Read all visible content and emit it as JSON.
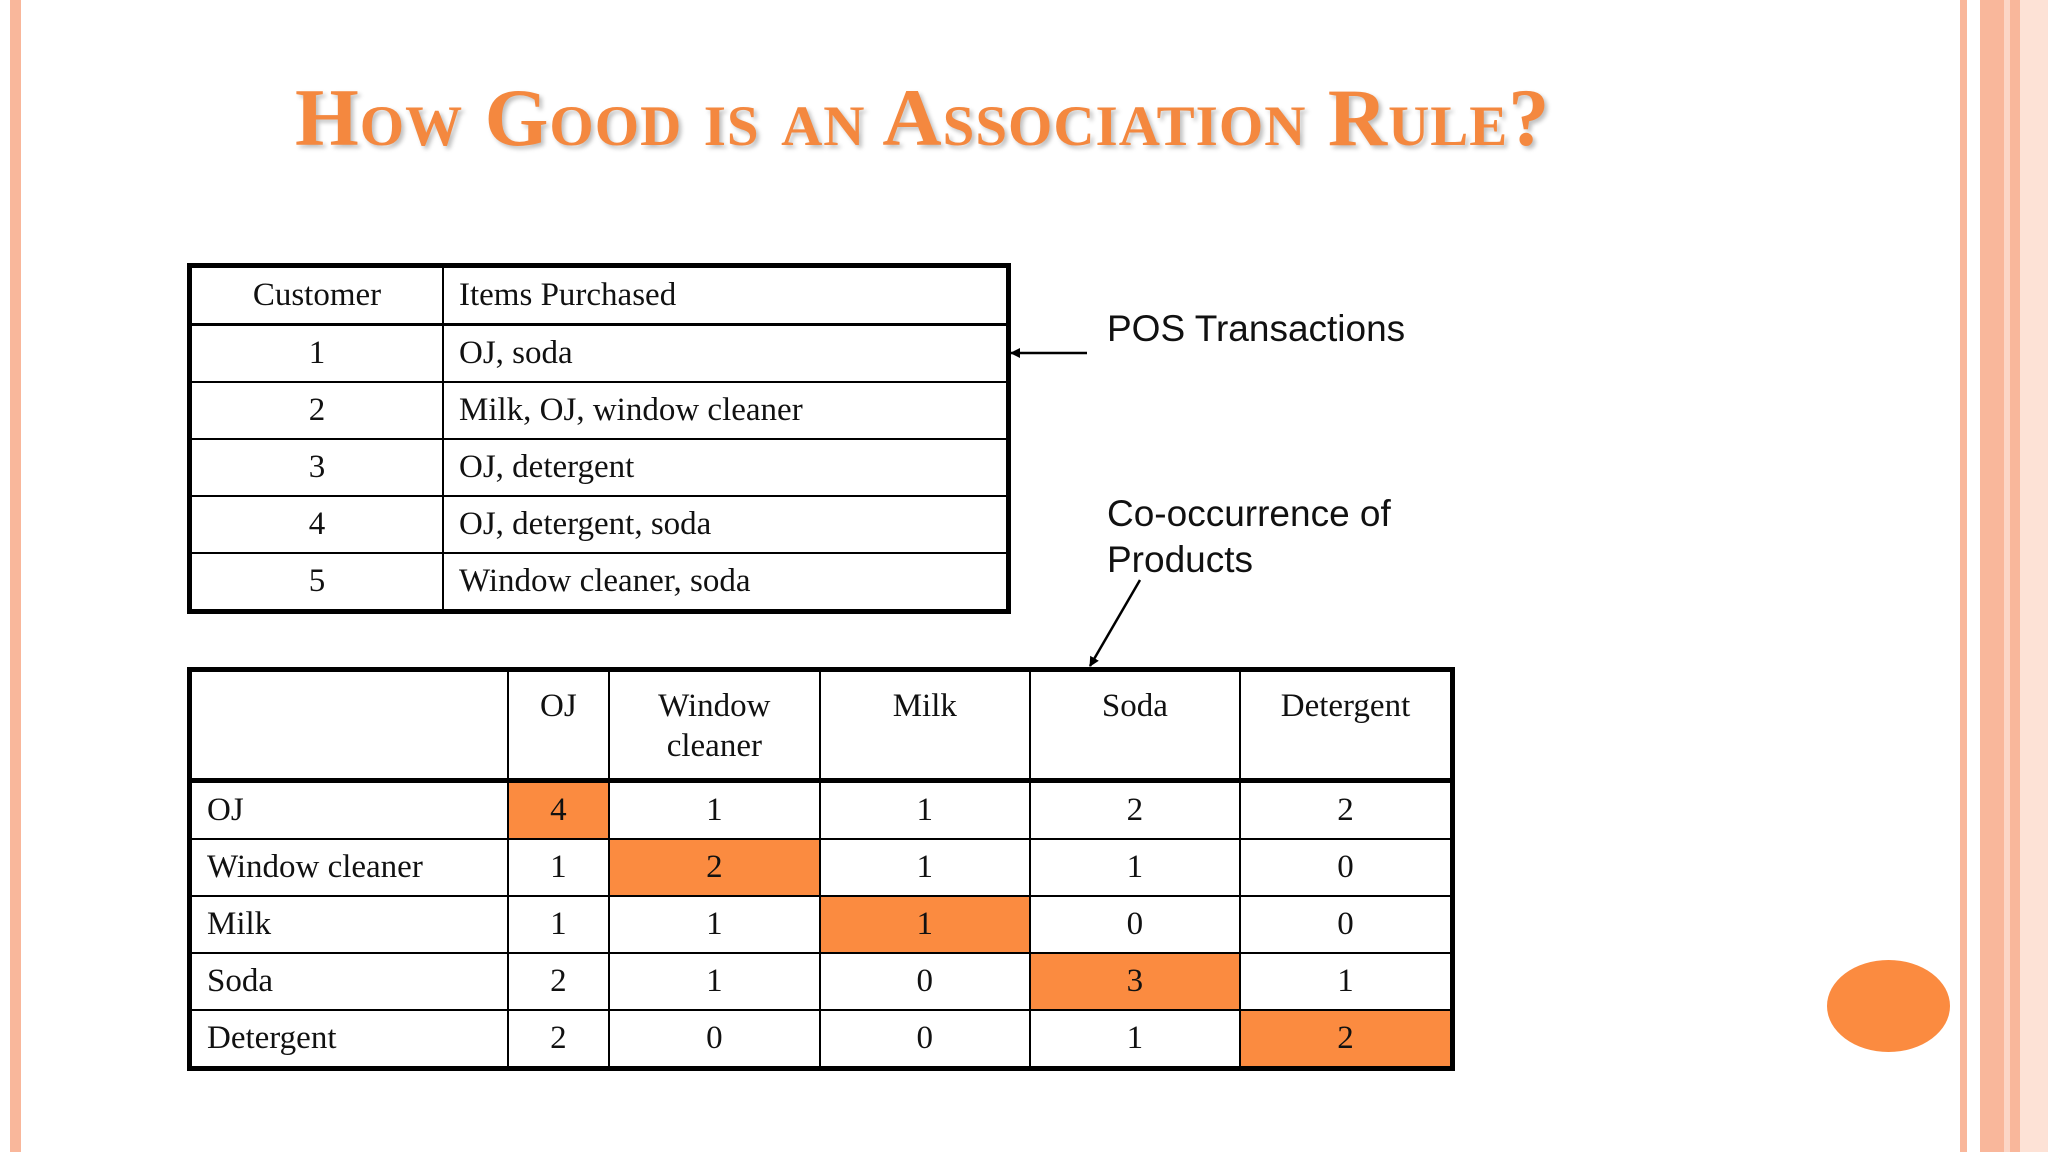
{
  "title": "How Good is an Association Rule?",
  "pos_table": {
    "headers": [
      "Customer",
      "Items Purchased"
    ],
    "rows": [
      [
        "1",
        "OJ, soda"
      ],
      [
        "2",
        "Milk, OJ, window cleaner"
      ],
      [
        "3",
        "OJ, detergent"
      ],
      [
        "4",
        "OJ, detergent, soda"
      ],
      [
        "5",
        "Window cleaner, soda"
      ]
    ]
  },
  "labels": {
    "pos": "POS Transactions",
    "cooc_line1": "Co-occurrence of",
    "cooc_line2": "Products"
  },
  "cooc_table": {
    "corner": "",
    "col_headers": [
      {
        "line1": "OJ",
        "line2": ""
      },
      {
        "line1": "Window",
        "line2": "cleaner"
      },
      {
        "line1": "Milk",
        "line2": ""
      },
      {
        "line1": "Soda",
        "line2": ""
      },
      {
        "line1": "Detergent",
        "line2": ""
      }
    ],
    "rows": [
      {
        "label": "OJ",
        "values": [
          "4",
          "1",
          "1",
          "2",
          "2"
        ]
      },
      {
        "label": "Window cleaner",
        "values": [
          "1",
          "2",
          "1",
          "1",
          "0"
        ]
      },
      {
        "label": "Milk",
        "values": [
          "1",
          "1",
          "1",
          "0",
          "0"
        ]
      },
      {
        "label": "Soda",
        "values": [
          "2",
          "1",
          "0",
          "3",
          "1"
        ]
      },
      {
        "label": "Detergent",
        "values": [
          "2",
          "0",
          "0",
          "1",
          "2"
        ]
      }
    ],
    "highlight_color": "#fb8b40"
  },
  "colors": {
    "title": "#f4883f",
    "accent": "#fb8b40",
    "border": "#f9b79b"
  }
}
